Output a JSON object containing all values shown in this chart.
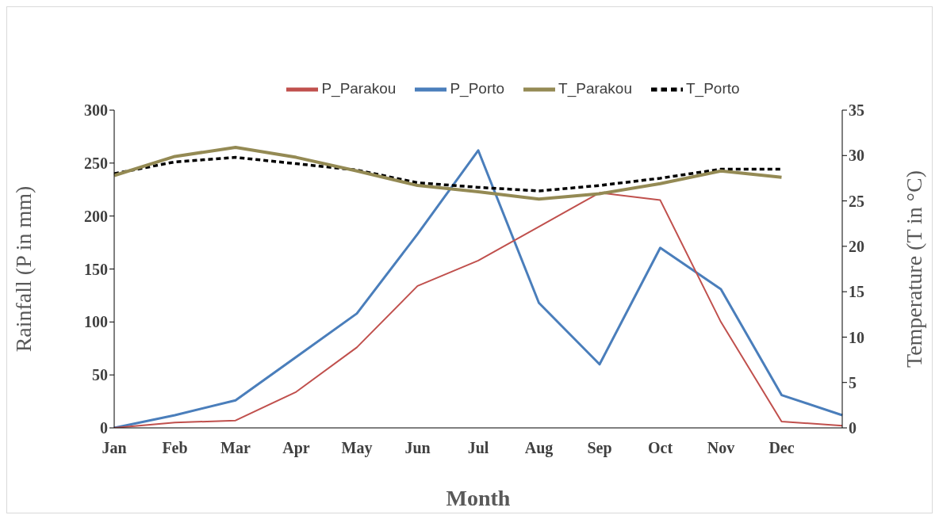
{
  "chart_data": {
    "type": "line",
    "xlabel": "Month",
    "ylabel": "Rainfall (P in mm)",
    "y2label": "Temperature (T in °C)",
    "categories": [
      "Jan",
      "Feb",
      "Mar",
      "Apr",
      "May",
      "Jun",
      "Jul",
      "Aug",
      "Sep",
      "Oct",
      "Nov",
      "Dec",
      null
    ],
    "series": [
      {
        "name": "P_Porto",
        "color": "#4a7ebb",
        "line_style": "solid",
        "values": [
          0,
          12,
          26,
          67,
          108,
          183,
          262,
          118,
          60,
          170,
          131,
          31,
          12
        ]
      },
      {
        "name": "P_Parakou",
        "color": "#c0504d",
        "line_style": "solid",
        "values": [
          0,
          5,
          7,
          34,
          76,
          134,
          158,
          190,
          222,
          215,
          100,
          6,
          2
        ]
      },
      {
        "name": "T_Porto",
        "color": "#000000",
        "line_style": "dashed",
        "axis": "y2",
        "values": [
          28.0,
          29.3,
          29.8,
          29.1,
          28.4,
          27.0,
          26.5,
          26.1,
          26.7,
          27.5,
          28.5,
          28.5,
          null
        ]
      },
      {
        "name": "T_Parakou",
        "color": "#948a54",
        "line_style": "solid",
        "axis": "y2",
        "values": [
          27.8,
          29.9,
          30.9,
          29.8,
          28.3,
          26.7,
          26.0,
          25.2,
          25.8,
          26.9,
          28.3,
          27.6,
          null
        ]
      }
    ],
    "ylim": [
      0,
      300
    ],
    "yticks": [
      0,
      50,
      100,
      150,
      200,
      250,
      300
    ],
    "y2lim": [
      0,
      35
    ],
    "y2ticks": [
      0,
      5,
      10,
      15,
      20,
      25,
      30,
      35
    ],
    "grid": false,
    "legend": "top",
    "marker": "none"
  }
}
